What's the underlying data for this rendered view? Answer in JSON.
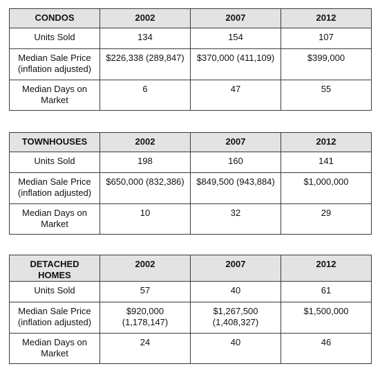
{
  "tables": [
    {
      "category": "CONDOS",
      "years": [
        "2002",
        "2007",
        "2012"
      ],
      "rows": [
        {
          "label": "Units Sold",
          "values": [
            "134",
            "154",
            "107"
          ]
        },
        {
          "label": "Median Sale Price (inflation adjusted)",
          "values": [
            "$226,338 (289,847)",
            "$370,000 (411,109)",
            "$399,000"
          ]
        },
        {
          "label": "Median Days on Market",
          "values": [
            "6",
            "47",
            "55"
          ]
        }
      ]
    },
    {
      "category": "TOWNHOUSES",
      "years": [
        "2002",
        "2007",
        "2012"
      ],
      "rows": [
        {
          "label": "Units Sold",
          "values": [
            "198",
            "160",
            "141"
          ]
        },
        {
          "label": "Median Sale Price (inflation adjusted)",
          "values": [
            "$650,000 (832,386)",
            "$849,500 (943,884)",
            "$1,000,000"
          ]
        },
        {
          "label": "Median Days on Market",
          "values": [
            "10",
            "32",
            "29"
          ]
        }
      ]
    },
    {
      "category": "DETACHED HOMES",
      "years": [
        "2002",
        "2007",
        "2012"
      ],
      "rows": [
        {
          "label": "Units Sold",
          "values": [
            "57",
            "40",
            "61"
          ]
        },
        {
          "label": "Median Sale Price (inflation adjusted)",
          "values": [
            "$920,000 (1,178,147)",
            "$1,267,500 (1,408,327)",
            "$1,500,000"
          ]
        },
        {
          "label": "Median Days on Market",
          "values": [
            "24",
            "40",
            "46"
          ]
        }
      ]
    }
  ],
  "colors": {
    "header_background": "#e3e3e3",
    "border": "#3a3a3a",
    "text": "#111111"
  }
}
